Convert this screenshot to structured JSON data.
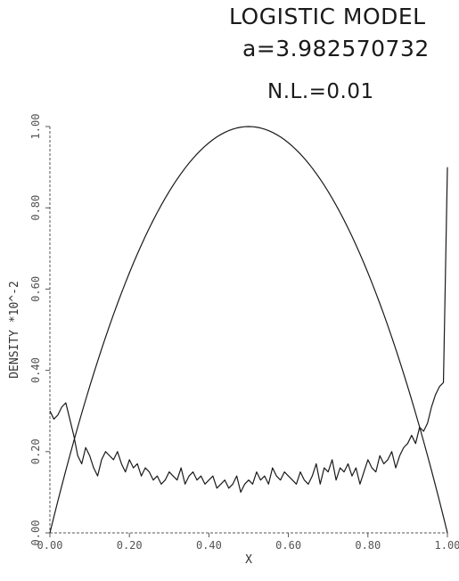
{
  "annotations": {
    "title": "LOGISTIC MODEL",
    "parameter": "a=3.982570732",
    "noise_level": "N.L.=0.01"
  },
  "chart_data": {
    "type": "line",
    "title": "LOGISTIC MODEL",
    "subtitle": "a=3.982570732   N.L.=0.01",
    "xlabel": "X",
    "ylabel": "DENSITY *10^-2",
    "xlim": [
      0.0,
      1.0
    ],
    "ylim": [
      0.0,
      1.0
    ],
    "xticks": [
      "0.00",
      "0.20",
      "0.40",
      "0.60",
      "0.80",
      "1.00"
    ],
    "yticks": [
      "0.00",
      "0.20",
      "0.40",
      "0.60",
      "0.80",
      "1.00"
    ],
    "grid": false,
    "x": [
      0.0,
      0.01,
      0.02,
      0.03,
      0.04,
      0.05,
      0.06,
      0.07,
      0.08,
      0.09,
      0.1,
      0.11,
      0.12,
      0.13,
      0.14,
      0.15,
      0.16,
      0.17,
      0.18,
      0.19,
      0.2,
      0.21,
      0.22,
      0.23,
      0.24,
      0.25,
      0.26,
      0.27,
      0.28,
      0.29,
      0.3,
      0.31,
      0.32,
      0.33,
      0.34,
      0.35,
      0.36,
      0.37,
      0.38,
      0.39,
      0.4,
      0.41,
      0.42,
      0.43,
      0.44,
      0.45,
      0.46,
      0.47,
      0.48,
      0.49,
      0.5,
      0.51,
      0.52,
      0.53,
      0.54,
      0.55,
      0.56,
      0.57,
      0.58,
      0.59,
      0.6,
      0.61,
      0.62,
      0.63,
      0.64,
      0.65,
      0.66,
      0.67,
      0.68,
      0.69,
      0.7,
      0.71,
      0.72,
      0.73,
      0.74,
      0.75,
      0.76,
      0.77,
      0.78,
      0.79,
      0.8,
      0.81,
      0.82,
      0.83,
      0.84,
      0.85,
      0.86,
      0.87,
      0.88,
      0.89,
      0.9,
      0.91,
      0.92,
      0.93,
      0.94,
      0.95,
      0.96,
      0.97,
      0.98,
      0.99,
      1.0
    ],
    "series": [
      {
        "color": "#1a1a1a",
        "values": [
          0.0,
          0.0396,
          0.0784,
          0.1164,
          0.1536,
          0.19,
          0.2256,
          0.2604,
          0.2944,
          0.3276,
          0.36,
          0.3916,
          0.4224,
          0.4524,
          0.4816,
          0.51,
          0.5376,
          0.5644,
          0.5904,
          0.6156,
          0.64,
          0.6636,
          0.6864,
          0.7084,
          0.7296,
          0.75,
          0.7696,
          0.7884,
          0.8064,
          0.8236,
          0.84,
          0.8556,
          0.8704,
          0.8844,
          0.8976,
          0.91,
          0.9216,
          0.9324,
          0.9424,
          0.9516,
          0.96,
          0.9676,
          0.9744,
          0.9804,
          0.9856,
          0.99,
          0.9936,
          0.9964,
          0.9984,
          0.9996,
          1.0,
          0.9996,
          0.9984,
          0.9964,
          0.9936,
          0.99,
          0.9856,
          0.9804,
          0.9744,
          0.9676,
          0.96,
          0.9516,
          0.9424,
          0.9324,
          0.9216,
          0.91,
          0.8976,
          0.8844,
          0.8704,
          0.8556,
          0.84,
          0.8236,
          0.8064,
          0.7884,
          0.7696,
          0.75,
          0.7296,
          0.7084,
          0.6864,
          0.6636,
          0.64,
          0.6156,
          0.5904,
          0.5644,
          0.5376,
          0.51,
          0.4816,
          0.4524,
          0.4224,
          0.3916,
          0.36,
          0.3276,
          0.2944,
          0.2604,
          0.2256,
          0.19,
          0.1536,
          0.1164,
          0.0784,
          0.0396,
          0.0
        ]
      },
      {
        "color": "#1a1a1a",
        "values": [
          0.3,
          0.28,
          0.29,
          0.31,
          0.32,
          0.28,
          0.24,
          0.19,
          0.17,
          0.21,
          0.19,
          0.16,
          0.14,
          0.18,
          0.2,
          0.19,
          0.18,
          0.2,
          0.17,
          0.15,
          0.18,
          0.16,
          0.17,
          0.14,
          0.16,
          0.15,
          0.13,
          0.14,
          0.12,
          0.13,
          0.15,
          0.14,
          0.13,
          0.16,
          0.12,
          0.14,
          0.15,
          0.13,
          0.14,
          0.12,
          0.13,
          0.14,
          0.11,
          0.12,
          0.13,
          0.11,
          0.12,
          0.14,
          0.1,
          0.12,
          0.13,
          0.12,
          0.15,
          0.13,
          0.14,
          0.12,
          0.16,
          0.14,
          0.13,
          0.15,
          0.14,
          0.13,
          0.12,
          0.15,
          0.13,
          0.12,
          0.14,
          0.17,
          0.12,
          0.16,
          0.15,
          0.18,
          0.13,
          0.16,
          0.15,
          0.17,
          0.14,
          0.16,
          0.12,
          0.15,
          0.18,
          0.16,
          0.15,
          0.19,
          0.17,
          0.18,
          0.2,
          0.16,
          0.19,
          0.21,
          0.22,
          0.24,
          0.22,
          0.26,
          0.25,
          0.27,
          0.31,
          0.34,
          0.36,
          0.37,
          0.9
        ]
      }
    ]
  }
}
